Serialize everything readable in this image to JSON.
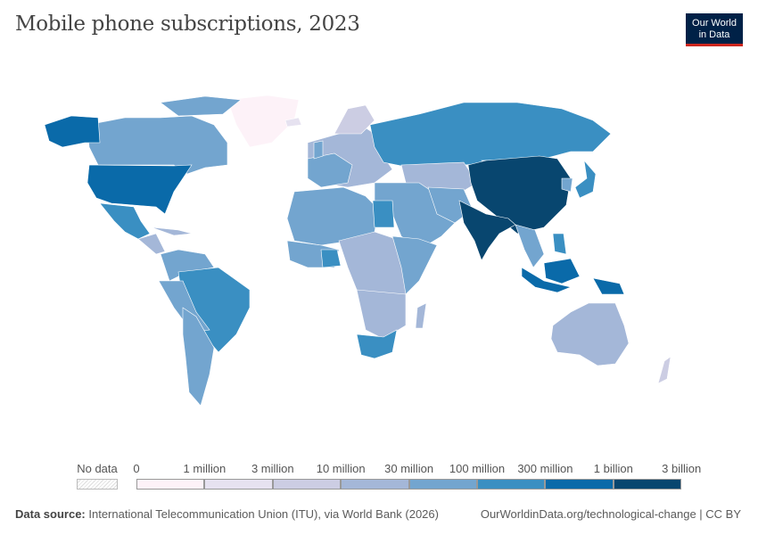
{
  "title": "Mobile phone subscriptions, 2023",
  "logo": {
    "line1": "Our World",
    "line2": "in Data"
  },
  "legend": {
    "no_data_label": "No data",
    "labels": [
      "0",
      "1 million",
      "3 million",
      "10 million",
      "30 million",
      "100 million",
      "300 million",
      "1 billion",
      "3 billion"
    ],
    "colors": [
      "#fdf2f8",
      "#e6e2f0",
      "#cccde3",
      "#a4b7d8",
      "#73a5cf",
      "#3a8fc2",
      "#0a6aa9",
      "#08466f"
    ]
  },
  "footer": {
    "source_label": "Data source:",
    "source_text": "International Telecommunication Union (ITU), via World Bank (2026)",
    "url": "OurWorldinData.org/technological-change | CC BY"
  },
  "chart_data": {
    "type": "choropleth",
    "title": "Mobile phone subscriptions, 2023",
    "bins": [
      0,
      1000000,
      3000000,
      10000000,
      30000000,
      100000000,
      300000000,
      1000000000,
      3000000000
    ],
    "regions": [
      {
        "name": "China",
        "bin": 7
      },
      {
        "name": "India",
        "bin": 7
      },
      {
        "name": "United States",
        "bin": 6
      },
      {
        "name": "Indonesia",
        "bin": 6
      },
      {
        "name": "Brazil",
        "bin": 5
      },
      {
        "name": "Russia",
        "bin": 5
      },
      {
        "name": "Mexico",
        "bin": 5
      },
      {
        "name": "Nigeria",
        "bin": 5
      },
      {
        "name": "Japan",
        "bin": 5
      },
      {
        "name": "Egypt",
        "bin": 5
      },
      {
        "name": "South Africa",
        "bin": 5
      },
      {
        "name": "Canada",
        "bin": 4
      },
      {
        "name": "Australia",
        "bin": 3
      },
      {
        "name": "Greenland",
        "bin": 0
      }
    ]
  }
}
